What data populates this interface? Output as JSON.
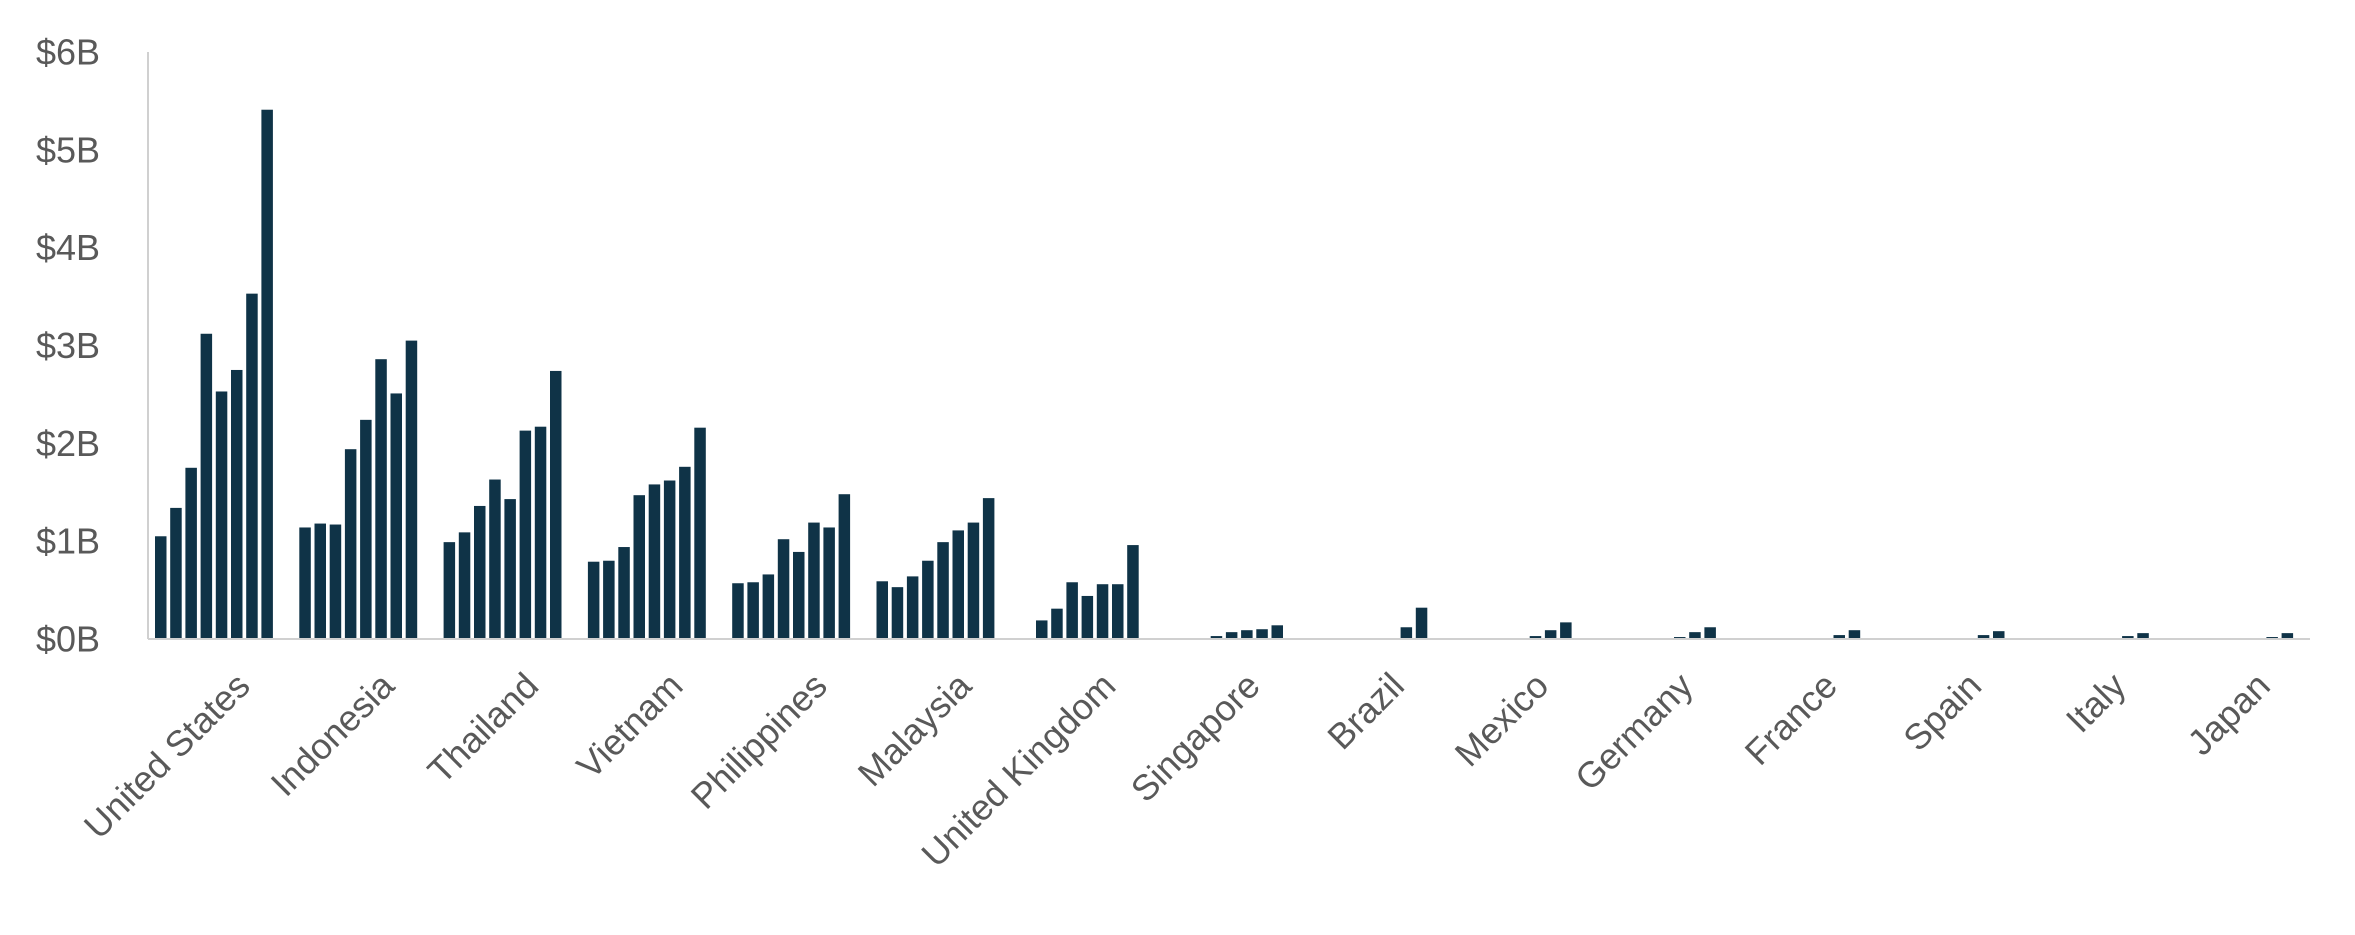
{
  "colors": {
    "bar": "#0f3347",
    "axis": "#d0d0d0",
    "text": "#595959"
  },
  "chart_data": {
    "type": "bar",
    "ylim": [
      0,
      6
    ],
    "ytick_values": [
      0,
      1,
      2,
      3,
      4,
      5,
      6
    ],
    "ytick_labels": [
      "$0B",
      "$1B",
      "$2B",
      "$3B",
      "$4B",
      "$5B",
      "$6B"
    ],
    "grid": false,
    "legend": "none",
    "categories": [
      "United States",
      "Indonesia",
      "Thailand",
      "Vietnam",
      "Philippines",
      "Malaysia",
      "United Kingdom",
      "Singapore",
      "Brazil",
      "Mexico",
      "Germany",
      "France",
      "Spain",
      "Italy",
      "Japan"
    ],
    "values": [
      [
        1.05,
        1.34,
        1.75,
        3.12,
        2.53,
        2.75,
        3.53,
        5.41
      ],
      [
        1.14,
        1.18,
        1.17,
        1.94,
        2.24,
        2.86,
        2.51,
        3.05
      ],
      [
        0.99,
        1.09,
        1.36,
        1.63,
        1.43,
        2.13,
        2.17,
        2.74
      ],
      [
        0.79,
        0.8,
        0.94,
        1.47,
        1.58,
        1.62,
        1.76,
        2.16
      ],
      [
        0.57,
        0.58,
        0.66,
        1.02,
        0.89,
        1.19,
        1.14,
        1.48
      ],
      [
        0.59,
        0.53,
        0.64,
        0.8,
        0.99,
        1.11,
        1.19,
        1.44
      ],
      [
        0.01,
        0.19,
        0.31,
        0.58,
        0.44,
        0.56,
        0.56,
        0.96
      ],
      [
        0,
        0,
        0,
        0.03,
        0.07,
        0.09,
        0.1,
        0.14
      ],
      [
        0,
        0,
        0,
        0,
        0,
        0,
        0.12,
        0.32
      ],
      [
        0,
        0,
        0,
        0,
        0,
        0.03,
        0.09,
        0.17
      ],
      [
        0,
        0,
        0,
        0,
        0,
        0.02,
        0.07,
        0.12
      ],
      [
        0,
        0,
        0,
        0,
        0,
        0,
        0.04,
        0.09
      ],
      [
        0,
        0,
        0,
        0,
        0,
        0,
        0.04,
        0.08
      ],
      [
        0,
        0,
        0,
        0,
        0,
        0,
        0.03,
        0.06
      ],
      [
        0,
        0,
        0,
        0,
        0,
        0,
        0.02,
        0.06
      ]
    ]
  }
}
